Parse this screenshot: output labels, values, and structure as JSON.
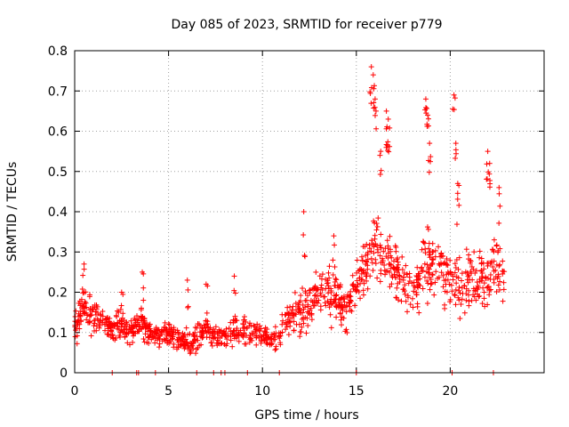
{
  "chart_data": {
    "type": "scatter",
    "title": "Day 085 of 2023, SRMTID for receiver p779",
    "xlabel": "GPS time / hours",
    "ylabel": "SRMTID / TECUs",
    "xlim": [
      0,
      25
    ],
    "ylim": [
      0,
      0.8
    ],
    "x_ticks": [
      0,
      5,
      10,
      15,
      20
    ],
    "y_ticks": [
      0,
      0.1,
      0.2,
      0.3,
      0.4,
      0.5,
      0.6,
      0.7,
      0.8
    ],
    "x_tick_labels": [
      "0",
      "5",
      "10",
      "15",
      "20"
    ],
    "y_tick_labels": [
      "0",
      "0.1",
      "0.2",
      "0.3",
      "0.4",
      "0.5",
      "0.6",
      "0.7",
      "0.8"
    ],
    "grid": true,
    "marker": "+",
    "color": "#ff0000",
    "zero_markers_x": [
      2.0,
      3.3,
      3.4,
      4.3,
      6.5,
      7.4,
      7.8,
      8.0,
      9.2,
      10.9,
      15.0,
      20.1,
      22.3
    ],
    "envelope": {
      "x": [
        0.0,
        0.5,
        1.0,
        1.5,
        2.0,
        2.5,
        3.0,
        3.5,
        4.0,
        4.5,
        5.0,
        5.5,
        6.0,
        6.5,
        7.0,
        7.5,
        8.0,
        8.5,
        9.0,
        9.5,
        10.0,
        10.5,
        11.0,
        11.5,
        12.0,
        12.5,
        13.0,
        13.5,
        14.0,
        14.5,
        15.0,
        15.5,
        16.0,
        16.5,
        17.0,
        17.5,
        18.0,
        18.5,
        19.0,
        19.5,
        20.0,
        20.5,
        21.0,
        21.5,
        22.0,
        22.5,
        22.9
      ],
      "center": [
        0.11,
        0.17,
        0.14,
        0.13,
        0.11,
        0.12,
        0.1,
        0.13,
        0.09,
        0.09,
        0.1,
        0.08,
        0.07,
        0.09,
        0.11,
        0.09,
        0.09,
        0.1,
        0.11,
        0.1,
        0.09,
        0.08,
        0.1,
        0.13,
        0.15,
        0.17,
        0.19,
        0.2,
        0.18,
        0.15,
        0.22,
        0.27,
        0.33,
        0.3,
        0.27,
        0.23,
        0.2,
        0.26,
        0.28,
        0.24,
        0.22,
        0.23,
        0.24,
        0.22,
        0.25,
        0.26,
        0.24
      ],
      "spread": [
        0.05,
        0.08,
        0.06,
        0.05,
        0.04,
        0.05,
        0.04,
        0.06,
        0.04,
        0.04,
        0.04,
        0.04,
        0.04,
        0.05,
        0.05,
        0.04,
        0.04,
        0.05,
        0.05,
        0.05,
        0.04,
        0.04,
        0.05,
        0.07,
        0.09,
        0.09,
        0.09,
        0.09,
        0.08,
        0.07,
        0.09,
        0.12,
        0.13,
        0.12,
        0.1,
        0.09,
        0.09,
        0.12,
        0.12,
        0.1,
        0.1,
        0.11,
        0.11,
        0.1,
        0.11,
        0.11,
        0.1
      ]
    },
    "spikes": [
      {
        "x": 0.5,
        "y": 0.27
      },
      {
        "x": 2.5,
        "y": 0.2
      },
      {
        "x": 3.6,
        "y": 0.25
      },
      {
        "x": 6.0,
        "y": 0.23
      },
      {
        "x": 7.0,
        "y": 0.22
      },
      {
        "x": 8.5,
        "y": 0.24
      },
      {
        "x": 12.2,
        "y": 0.4
      },
      {
        "x": 13.8,
        "y": 0.34
      },
      {
        "x": 15.8,
        "y": 0.76
      },
      {
        "x": 15.9,
        "y": 0.74
      },
      {
        "x": 16.0,
        "y": 0.68
      },
      {
        "x": 16.3,
        "y": 0.55
      },
      {
        "x": 16.6,
        "y": 0.65
      },
      {
        "x": 16.7,
        "y": 0.63
      },
      {
        "x": 18.7,
        "y": 0.68
      },
      {
        "x": 18.8,
        "y": 0.64
      },
      {
        "x": 18.9,
        "y": 0.57
      },
      {
        "x": 20.2,
        "y": 0.69
      },
      {
        "x": 20.3,
        "y": 0.57
      },
      {
        "x": 20.4,
        "y": 0.47
      },
      {
        "x": 22.0,
        "y": 0.55
      },
      {
        "x": 22.1,
        "y": 0.52
      },
      {
        "x": 22.6,
        "y": 0.46
      }
    ],
    "sample_count": 1300
  }
}
